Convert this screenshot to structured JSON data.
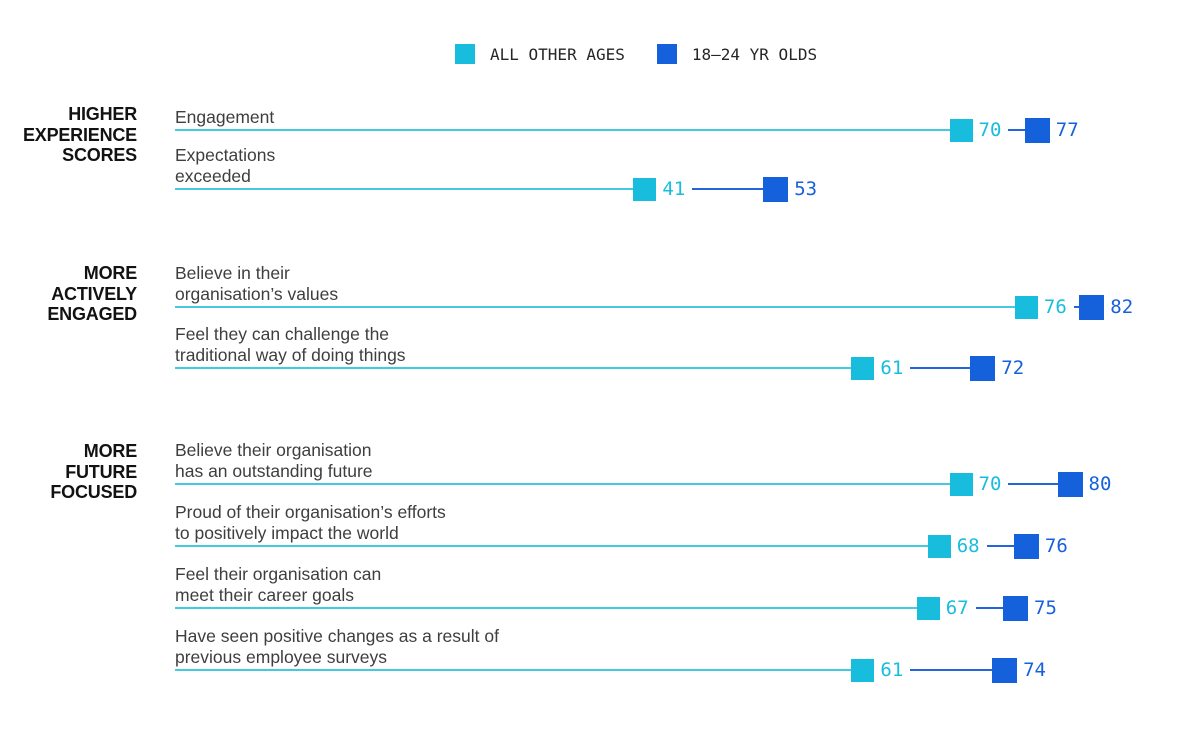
{
  "chart_data": {
    "type": "dumbbell",
    "xlim": [
      0,
      100
    ],
    "grid": false,
    "legend_position": "top-center",
    "series": [
      {
        "name": "ALL OTHER AGES",
        "color": "#18BDDE",
        "line_color": "#45C8E2"
      },
      {
        "name": "18–24 YR OLDS",
        "color": "#1561DC",
        "line_color": "#2465D8"
      }
    ],
    "groups": [
      {
        "label": "HIGHER EXPERIENCE SCORES",
        "label_lines": [
          "HIGHER",
          "EXPERIENCE",
          "SCORES"
        ],
        "rows": [
          {
            "label_lines": [
              "Engagement"
            ],
            "values": [
              70,
              77
            ]
          },
          {
            "label_lines": [
              "Expectations",
              "exceeded"
            ],
            "values": [
              41,
              53
            ]
          }
        ]
      },
      {
        "label": "MORE ACTIVELY ENGAGED",
        "label_lines": [
          "MORE",
          "ACTIVELY",
          "ENGAGED"
        ],
        "rows": [
          {
            "label_lines": [
              "Believe in their",
              "organisation’s values"
            ],
            "values": [
              76,
              82
            ]
          },
          {
            "label_lines": [
              "Feel they can challenge the",
              "traditional way of doing things"
            ],
            "values": [
              61,
              72
            ]
          }
        ]
      },
      {
        "label": "MORE FUTURE FOCUSED",
        "label_lines": [
          "MORE",
          "FUTURE",
          "FOCUSED"
        ],
        "rows": [
          {
            "label_lines": [
              "Believe their organisation",
              "has an outstanding future"
            ],
            "values": [
              70,
              80
            ]
          },
          {
            "label_lines": [
              "Proud of their organisation’s efforts",
              "to positively impact the world"
            ],
            "values": [
              68,
              76
            ]
          },
          {
            "label_lines": [
              "Feel their organisation can",
              "meet their career goals"
            ],
            "values": [
              67,
              75
            ]
          },
          {
            "label_lines": [
              "Have seen positive changes as a result of",
              "previous employee surveys"
            ],
            "values": [
              61,
              74
            ]
          }
        ]
      }
    ]
  }
}
